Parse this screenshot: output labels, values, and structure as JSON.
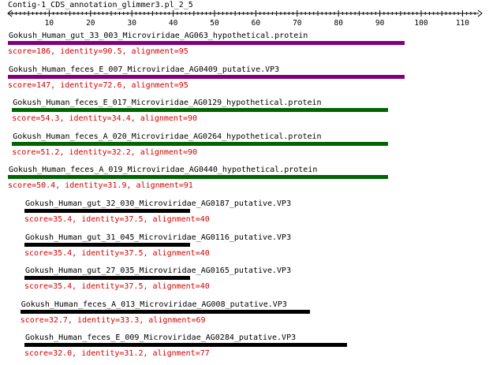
{
  "title": "Contig-1_CDS_annotation_glimmer3.pl_2_5",
  "ruler": {
    "min": 0,
    "max": 115,
    "labels": [
      10,
      20,
      30,
      40,
      50,
      60,
      70,
      80,
      90,
      100,
      110
    ]
  },
  "colors": {
    "text": "#000000",
    "score_text": "#d40000",
    "purple": "#800080",
    "green": "#006400",
    "black": "#000000"
  },
  "hits": [
    {
      "name": "Gokush_Human_gut_33_003_Microviridae_AG063_hypothetical.protein",
      "score_text": "score=186, identity=90.5, alignment=95",
      "start": 0,
      "end": 96,
      "color": "#800080"
    },
    {
      "name": "Gokush_Human_feces_E_007_Microviridae_AG0409_putative.VP3",
      "score_text": "score=147, identity=72.6, alignment=95",
      "start": 0,
      "end": 96,
      "color": "#800080"
    },
    {
      "name": "Gokush_Human_feces_E_017_Microviridae_AG0129_hypothetical.protein",
      "score_text": "score=54.3, identity=34.4, alignment=90",
      "start": 1,
      "end": 92,
      "color": "#006400"
    },
    {
      "name": "Gokush_Human_feces_A_020_Microviridae_AG0264_hypothetical.protein",
      "score_text": "score=51.2, identity=32.2, alignment=90",
      "start": 1,
      "end": 92,
      "color": "#006400"
    },
    {
      "name": "Gokush_Human_feces_A_019_Microviridae_AG0440_hypothetical.protein",
      "score_text": "score=50.4, identity=31.9, alignment=91",
      "start": 0,
      "end": 92,
      "color": "#006400"
    },
    {
      "name": "Gokush_Human_gut_32_030_Microviridae_AG0187_putative.VP3",
      "score_text": "score=35.4, identity=37.5, alignment=40",
      "start": 4,
      "end": 44,
      "color": "#000000"
    },
    {
      "name": "Gokush_Human_gut_31_045_Microviridae_AG0116_putative.VP3",
      "score_text": "score=35.4, identity=37.5, alignment=40",
      "start": 4,
      "end": 44,
      "color": "#000000"
    },
    {
      "name": "Gokush_Human_gut_27_035_Microviridae_AG0165_putative.VP3",
      "score_text": "score=35.4, identity=37.5, alignment=40",
      "start": 4,
      "end": 44,
      "color": "#000000"
    },
    {
      "name": "Gokush_Human_feces_A_013_Microviridae_AG008_putative.VP3",
      "score_text": "score=32.7, identity=33.3, alignment=69",
      "start": 3,
      "end": 73,
      "color": "#000000"
    },
    {
      "name": "Gokush_Human_feces_E_009_Microviridae_AG0284_putative.VP3",
      "score_text": "score=32.0, identity=31.2, alignment=77",
      "start": 4,
      "end": 82,
      "color": "#000000"
    }
  ]
}
